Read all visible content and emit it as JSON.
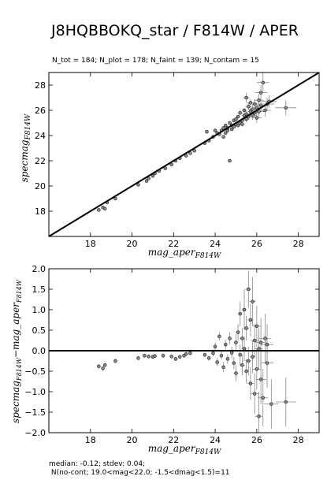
{
  "figure": {
    "title": "J8HQBBOKQ_star / F814W / APER",
    "subtitle": "N_tot = 184; N_plot = 178; N_faint = 139; N_contam = 15",
    "footer": [
      "median: -0.12; stdev: 0.04;",
      " N(no-cont; 19.0<mag<22.0; -1.5<dmag<1.5)=11"
    ]
  },
  "chart_data": [
    {
      "type": "scatter",
      "title": "",
      "xlabel_main": "mag_aper",
      "xlabel_sub": "F814W",
      "ylabel_main": "specmag",
      "ylabel_sub": "F814W",
      "xlim": [
        16,
        29
      ],
      "ylim": [
        16,
        29
      ],
      "xticks": [
        18,
        20,
        22,
        24,
        26,
        28
      ],
      "yticks": [
        18,
        20,
        22,
        24,
        26,
        28
      ],
      "grid": false,
      "reference_line": "y = x",
      "colors": {
        "point": "#888888",
        "edge": "#000000",
        "errorbar": "#888888",
        "line": "#000000"
      },
      "points": [
        [
          18.4,
          18.1,
          0.05,
          0.08
        ],
        [
          18.6,
          18.3,
          0.05,
          0.08
        ],
        [
          18.7,
          18.2,
          0.05,
          0.08
        ],
        [
          18.8,
          18.7,
          0.05,
          0.08
        ],
        [
          19.2,
          19.0,
          0.05,
          0.08
        ],
        [
          20.3,
          20.1,
          0.05,
          0.08
        ],
        [
          20.7,
          20.4,
          0.05,
          0.08
        ],
        [
          20.8,
          20.6,
          0.05,
          0.08
        ],
        [
          21.0,
          20.8,
          0.05,
          0.08
        ],
        [
          21.1,
          21.0,
          0.05,
          0.08
        ],
        [
          21.3,
          21.2,
          0.05,
          0.08
        ],
        [
          21.6,
          21.4,
          0.05,
          0.08
        ],
        [
          21.9,
          21.7,
          0.05,
          0.08
        ],
        [
          22.1,
          22.0,
          0.05,
          0.08
        ],
        [
          22.3,
          22.2,
          0.05,
          0.08
        ],
        [
          22.6,
          22.4,
          0.05,
          0.08
        ],
        [
          22.8,
          22.6,
          0.05,
          0.08
        ],
        [
          23.0,
          22.8,
          0.05,
          0.08
        ],
        [
          23.5,
          23.4,
          0.05,
          0.08
        ],
        [
          23.7,
          23.6,
          0.05,
          0.08
        ],
        [
          23.6,
          24.3,
          0.05,
          0.1
        ],
        [
          23.9,
          23.9,
          0.06,
          0.1
        ],
        [
          24.0,
          24.4,
          0.06,
          0.1
        ],
        [
          24.1,
          24.2,
          0.06,
          0.1
        ],
        [
          24.2,
          24.1,
          0.06,
          0.1
        ],
        [
          24.3,
          24.4,
          0.06,
          0.1
        ],
        [
          24.4,
          23.9,
          0.06,
          0.1
        ],
        [
          24.4,
          24.6,
          0.06,
          0.1
        ],
        [
          24.5,
          24.2,
          0.06,
          0.1
        ],
        [
          24.5,
          24.8,
          0.08,
          0.12
        ],
        [
          24.6,
          24.4,
          0.08,
          0.12
        ],
        [
          24.6,
          24.6,
          0.08,
          0.12
        ],
        [
          24.7,
          22.0,
          0.08,
          0.12
        ],
        [
          24.7,
          25.0,
          0.08,
          0.12
        ],
        [
          24.8,
          24.5,
          0.08,
          0.12
        ],
        [
          24.8,
          24.8,
          0.08,
          0.12
        ],
        [
          24.9,
          25.2,
          0.1,
          0.15
        ],
        [
          24.9,
          24.7,
          0.1,
          0.15
        ],
        [
          25.0,
          24.9,
          0.1,
          0.15
        ],
        [
          25.0,
          25.3,
          0.1,
          0.15
        ],
        [
          25.1,
          24.8,
          0.1,
          0.15
        ],
        [
          25.1,
          25.5,
          0.1,
          0.15
        ],
        [
          25.2,
          25.0,
          0.12,
          0.2
        ],
        [
          25.2,
          25.8,
          0.12,
          0.2
        ],
        [
          25.3,
          25.2,
          0.12,
          0.2
        ],
        [
          25.3,
          24.9,
          0.12,
          0.2
        ],
        [
          25.4,
          25.6,
          0.12,
          0.2
        ],
        [
          25.4,
          26.0,
          0.12,
          0.2
        ],
        [
          25.5,
          25.3,
          0.15,
          0.25
        ],
        [
          25.5,
          25.7,
          0.15,
          0.25
        ],
        [
          25.6,
          26.3,
          0.15,
          0.3
        ],
        [
          25.6,
          25.5,
          0.15,
          0.25
        ],
        [
          25.7,
          25.9,
          0.15,
          0.3
        ],
        [
          25.7,
          26.6,
          0.15,
          0.3
        ],
        [
          25.8,
          25.6,
          0.2,
          0.35
        ],
        [
          25.8,
          26.1,
          0.2,
          0.35
        ],
        [
          25.9,
          25.8,
          0.2,
          0.35
        ],
        [
          25.9,
          26.5,
          0.2,
          0.4
        ],
        [
          26.0,
          26.2,
          0.25,
          0.4
        ],
        [
          26.0,
          25.4,
          0.25,
          0.4
        ],
        [
          26.1,
          26.8,
          0.25,
          0.5
        ],
        [
          26.1,
          25.9,
          0.25,
          0.4
        ],
        [
          26.2,
          27.4,
          0.3,
          0.6
        ],
        [
          26.2,
          26.4,
          0.3,
          0.5
        ],
        [
          26.3,
          28.2,
          0.3,
          0.8
        ],
        [
          26.4,
          26.0,
          0.3,
          0.5
        ],
        [
          26.5,
          26.5,
          0.35,
          0.5
        ],
        [
          26.6,
          26.7,
          0.35,
          0.5
        ],
        [
          27.4,
          26.2,
          0.5,
          0.6
        ],
        [
          25.5,
          27.0,
          0.15,
          0.4
        ]
      ]
    },
    {
      "type": "scatter",
      "title": "",
      "xlabel_main": "mag_aper",
      "xlabel_sub": "F814W",
      "ylabel_main": "specmag",
      "ylabel_sub": "F814W",
      "ylabel_mid": "−mag_aper",
      "ylabel_sub2": "F814W",
      "xlim": [
        16,
        29
      ],
      "ylim": [
        -2.0,
        2.0
      ],
      "xticks": [
        18,
        20,
        22,
        24,
        26,
        28
      ],
      "yticks": [
        -2.0,
        -1.5,
        -1.0,
        -0.5,
        0.0,
        0.5,
        1.0,
        1.5,
        2.0
      ],
      "ytick_labels": [
        "−2.0",
        "−1.5",
        "−1.0",
        "−0.5",
        "0.0",
        "0.5",
        "1.0",
        "1.5",
        "2.0"
      ],
      "grid": false,
      "reference_line": "y = 0",
      "colors": {
        "point": "#888888",
        "edge": "#000000",
        "errorbar": "#888888",
        "line": "#000000"
      },
      "points": [
        [
          18.4,
          -0.38,
          0.05,
          0.05
        ],
        [
          18.6,
          -0.43,
          0.05,
          0.05
        ],
        [
          18.7,
          -0.35,
          0.05,
          0.05
        ],
        [
          19.2,
          -0.25,
          0.05,
          0.05
        ],
        [
          20.3,
          -0.18,
          0.05,
          0.05
        ],
        [
          20.6,
          -0.12,
          0.05,
          0.05
        ],
        [
          20.8,
          -0.14,
          0.05,
          0.05
        ],
        [
          21.0,
          -0.15,
          0.05,
          0.05
        ],
        [
          21.1,
          -0.13,
          0.05,
          0.05
        ],
        [
          21.5,
          -0.12,
          0.05,
          0.05
        ],
        [
          21.9,
          -0.14,
          0.05,
          0.05
        ],
        [
          22.1,
          -0.2,
          0.05,
          0.05
        ],
        [
          22.3,
          -0.15,
          0.05,
          0.05
        ],
        [
          22.5,
          -0.12,
          0.05,
          0.05
        ],
        [
          22.6,
          -0.08,
          0.05,
          0.05
        ],
        [
          22.8,
          -0.06,
          0.05,
          0.05
        ],
        [
          23.5,
          -0.1,
          0.05,
          0.06
        ],
        [
          23.7,
          -0.18,
          0.05,
          0.06
        ],
        [
          23.9,
          -0.06,
          0.05,
          0.08
        ],
        [
          24.0,
          0.1,
          0.06,
          0.1
        ],
        [
          24.1,
          -0.28,
          0.06,
          0.1
        ],
        [
          24.2,
          0.35,
          0.06,
          0.1
        ],
        [
          24.3,
          -0.12,
          0.06,
          0.1
        ],
        [
          24.4,
          -0.4,
          0.06,
          0.12
        ],
        [
          24.5,
          0.15,
          0.06,
          0.12
        ],
        [
          24.6,
          -0.2,
          0.08,
          0.12
        ],
        [
          24.7,
          0.3,
          0.08,
          0.15
        ],
        [
          24.8,
          -0.05,
          0.08,
          0.15
        ],
        [
          24.9,
          -0.3,
          0.08,
          0.15
        ],
        [
          25.0,
          0.2,
          0.1,
          0.2
        ],
        [
          25.0,
          -0.55,
          0.1,
          0.2
        ],
        [
          25.1,
          0.45,
          0.1,
          0.2
        ],
        [
          25.2,
          -0.1,
          0.1,
          0.25
        ],
        [
          25.2,
          0.9,
          0.1,
          0.3
        ],
        [
          25.3,
          -0.35,
          0.12,
          0.25
        ],
        [
          25.3,
          0.3,
          0.12,
          0.25
        ],
        [
          25.4,
          0.05,
          0.12,
          0.3
        ],
        [
          25.4,
          1.0,
          0.12,
          0.5
        ],
        [
          25.5,
          -0.5,
          0.12,
          0.3
        ],
        [
          25.5,
          0.55,
          0.12,
          0.3
        ],
        [
          25.6,
          -0.25,
          0.15,
          0.35
        ],
        [
          25.6,
          1.5,
          0.15,
          0.45
        ],
        [
          25.7,
          -0.8,
          0.15,
          0.4
        ],
        [
          25.7,
          0.75,
          0.15,
          0.4
        ],
        [
          25.8,
          -0.15,
          0.15,
          0.4
        ],
        [
          25.8,
          1.2,
          0.15,
          0.6
        ],
        [
          25.9,
          0.25,
          0.2,
          0.4
        ],
        [
          25.9,
          -1.05,
          0.2,
          0.5
        ],
        [
          26.0,
          0.6,
          0.2,
          0.5
        ],
        [
          26.0,
          -0.45,
          0.2,
          0.5
        ],
        [
          26.1,
          -1.6,
          0.2,
          0.6
        ],
        [
          26.1,
          0.05,
          0.2,
          0.5
        ],
        [
          26.2,
          -0.7,
          0.25,
          0.6
        ],
        [
          26.2,
          0.2,
          0.25,
          0.6
        ],
        [
          26.3,
          -1.15,
          0.25,
          0.7
        ],
        [
          26.4,
          0.3,
          0.3,
          0.6
        ],
        [
          26.5,
          -0.3,
          0.3,
          0.6
        ],
        [
          26.5,
          0.15,
          0.3,
          0.5
        ],
        [
          26.7,
          -1.3,
          0.35,
          0.6
        ],
        [
          27.4,
          -1.25,
          0.5,
          0.6
        ]
      ]
    }
  ]
}
